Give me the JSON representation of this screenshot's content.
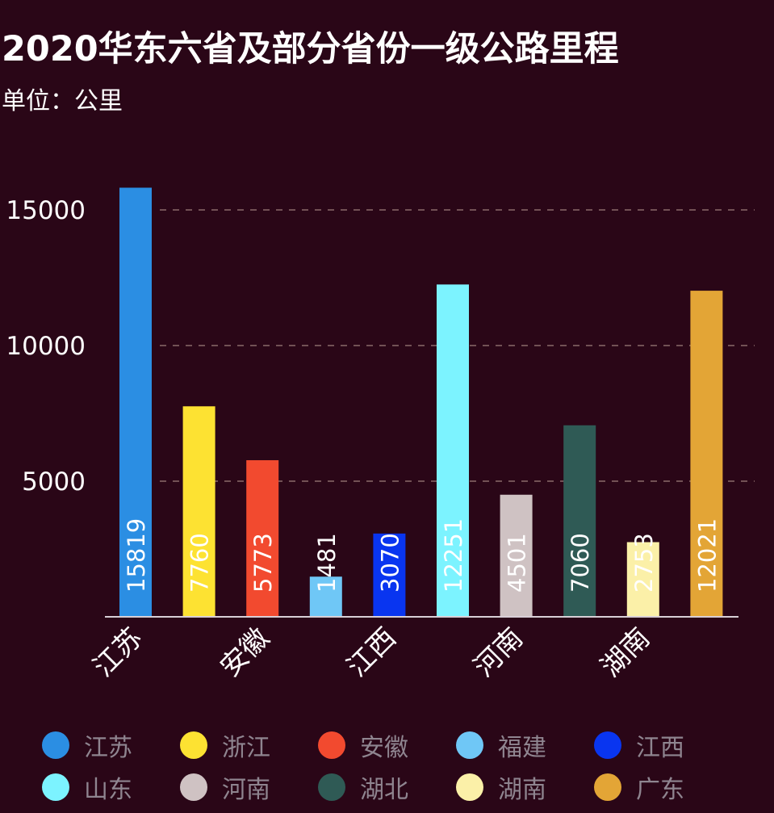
{
  "title": "2020华东六省及部分省份一级公路里程",
  "unit_label": "单位：公里",
  "chart_data": {
    "type": "bar",
    "title": "2020华东六省及部分省份一级公路里程",
    "subtitle": "单位：公里",
    "ylim": [
      0,
      15819
    ],
    "yticks": [
      5000,
      10000,
      15000
    ],
    "grid": "horizontal dashed",
    "legend_position": "bottom",
    "categories": [
      "江苏",
      "浙江",
      "安徽",
      "福建",
      "江西",
      "山东",
      "河南",
      "湖北",
      "湖南",
      "广东"
    ],
    "x_tick_labels": [
      "江苏",
      "",
      "安徽",
      "",
      "江西",
      "",
      "河南",
      "",
      "湖南",
      ""
    ],
    "values": [
      15819,
      7760,
      5773,
      1481,
      3070,
      12251,
      4501,
      7060,
      2753,
      12021
    ],
    "data_labels": [
      "15819",
      "7760",
      "5773",
      "1481",
      "3070",
      "12251",
      "4501",
      "7060",
      "2753",
      "12021"
    ],
    "colors": [
      "#2b8ee3",
      "#fde232",
      "#f24a2f",
      "#6fc7f6",
      "#0935f0",
      "#7cf3ff",
      "#cfc2c3",
      "#2f5a55",
      "#fbf0a8",
      "#e3a536"
    ]
  },
  "legend": [
    {
      "label": "江苏",
      "color": "#2b8ee3"
    },
    {
      "label": "浙江",
      "color": "#fde232"
    },
    {
      "label": "安徽",
      "color": "#f24a2f"
    },
    {
      "label": "福建",
      "color": "#6fc7f6"
    },
    {
      "label": "江西",
      "color": "#0935f0"
    },
    {
      "label": "山东",
      "color": "#7cf3ff"
    },
    {
      "label": "河南",
      "color": "#cfc2c3"
    },
    {
      "label": "湖北",
      "color": "#2f5a55"
    },
    {
      "label": "湖南",
      "color": "#fbf0a8"
    },
    {
      "label": "广东",
      "color": "#e3a536"
    }
  ]
}
